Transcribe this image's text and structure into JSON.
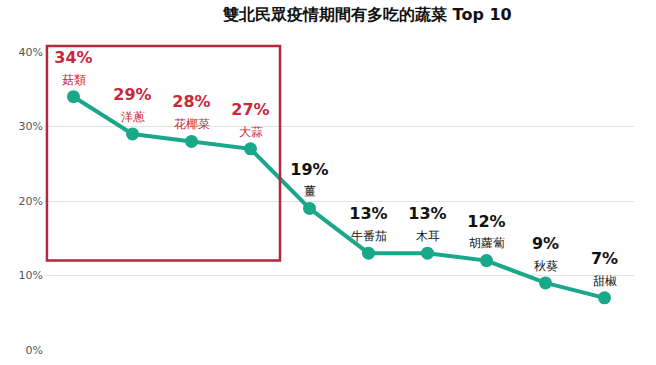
{
  "chart_data": {
    "type": "line",
    "title": "雙北民眾疫情期間有多吃的蔬菜 Top 10",
    "categories": [
      "菇類",
      "洋蔥",
      "花椰菜",
      "大蒜",
      "薑",
      "牛番茄",
      "木耳",
      "胡蘿蔔",
      "秋葵",
      "甜椒"
    ],
    "values": [
      34,
      29,
      28,
      27,
      19,
      13,
      13,
      12,
      9,
      7
    ],
    "value_labels": [
      "34%",
      "29%",
      "28%",
      "27%",
      "19%",
      "13%",
      "13%",
      "12%",
      "9%",
      "7%"
    ],
    "color": "#1aa88a",
    "ylim": [
      0,
      40
    ],
    "yticks": [
      {
        "value": 0,
        "label": "0%"
      },
      {
        "value": 10,
        "label": "10%"
      },
      {
        "value": 20,
        "label": "20%"
      },
      {
        "value": 30,
        "label": "30%"
      },
      {
        "value": 40,
        "label": "40%"
      }
    ],
    "grid": true,
    "data_labels": true,
    "tick_labels": "y",
    "marker": "circle"
  }
}
